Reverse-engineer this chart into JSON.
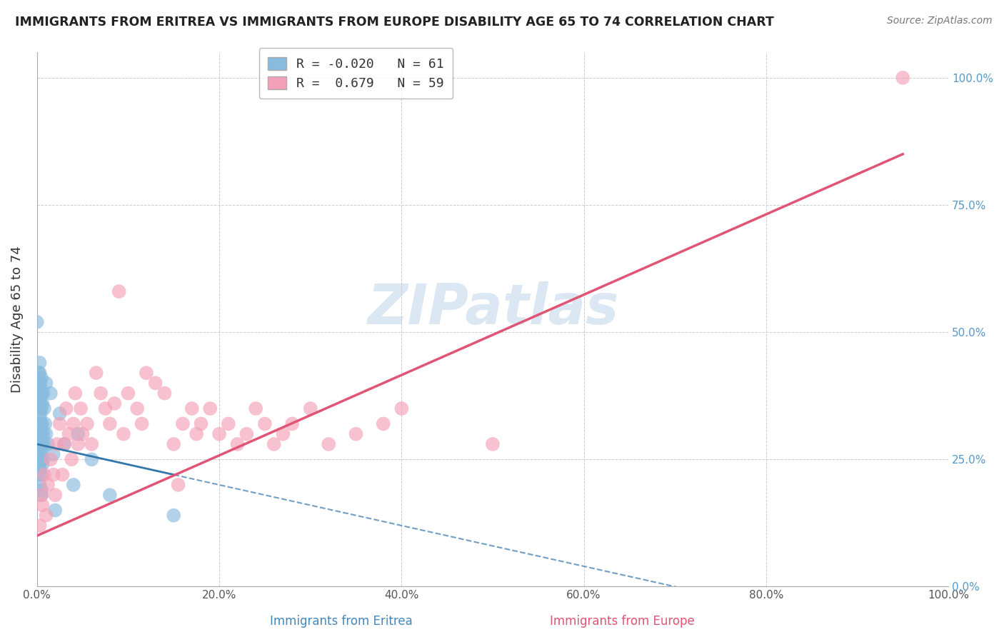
{
  "title": "IMMIGRANTS FROM ERITREA VS IMMIGRANTS FROM EUROPE DISABILITY AGE 65 TO 74 CORRELATION CHART",
  "source": "Source: ZipAtlas.com",
  "ylabel": "Disability Age 65 to 74",
  "xlabel_blue": "Immigrants from Eritrea",
  "xlabel_pink": "Immigrants from Europe",
  "legend_blue_R": "-0.020",
  "legend_blue_N": "61",
  "legend_pink_R": "0.679",
  "legend_pink_N": "59",
  "blue_color": "#88bbdd",
  "pink_color": "#f4a0b8",
  "blue_line_color": "#3377aa",
  "pink_line_color": "#e05575",
  "watermark": "ZIPatlas",
  "xlim": [
    0.0,
    1.0
  ],
  "ylim": [
    0.0,
    1.05
  ],
  "blue_scatter": [
    [
      0.0,
      0.52
    ],
    [
      0.002,
      0.42
    ],
    [
      0.002,
      0.4
    ],
    [
      0.002,
      0.38
    ],
    [
      0.002,
      0.37
    ],
    [
      0.003,
      0.44
    ],
    [
      0.003,
      0.42
    ],
    [
      0.003,
      0.39
    ],
    [
      0.003,
      0.37
    ],
    [
      0.003,
      0.36
    ],
    [
      0.003,
      0.35
    ],
    [
      0.003,
      0.33
    ],
    [
      0.003,
      0.32
    ],
    [
      0.003,
      0.3
    ],
    [
      0.003,
      0.28
    ],
    [
      0.003,
      0.27
    ],
    [
      0.003,
      0.25
    ],
    [
      0.003,
      0.24
    ],
    [
      0.003,
      0.23
    ],
    [
      0.003,
      0.22
    ],
    [
      0.003,
      0.2
    ],
    [
      0.004,
      0.4
    ],
    [
      0.004,
      0.38
    ],
    [
      0.004,
      0.36
    ],
    [
      0.004,
      0.34
    ],
    [
      0.004,
      0.32
    ],
    [
      0.004,
      0.3
    ],
    [
      0.004,
      0.28
    ],
    [
      0.004,
      0.26
    ],
    [
      0.005,
      0.41
    ],
    [
      0.005,
      0.38
    ],
    [
      0.005,
      0.35
    ],
    [
      0.005,
      0.3
    ],
    [
      0.005,
      0.27
    ],
    [
      0.005,
      0.25
    ],
    [
      0.005,
      0.22
    ],
    [
      0.005,
      0.19
    ],
    [
      0.005,
      0.18
    ],
    [
      0.006,
      0.36
    ],
    [
      0.006,
      0.32
    ],
    [
      0.006,
      0.28
    ],
    [
      0.006,
      0.24
    ],
    [
      0.007,
      0.38
    ],
    [
      0.007,
      0.3
    ],
    [
      0.007,
      0.25
    ],
    [
      0.008,
      0.35
    ],
    [
      0.008,
      0.28
    ],
    [
      0.009,
      0.32
    ],
    [
      0.01,
      0.4
    ],
    [
      0.01,
      0.3
    ],
    [
      0.012,
      0.28
    ],
    [
      0.015,
      0.38
    ],
    [
      0.018,
      0.26
    ],
    [
      0.02,
      0.15
    ],
    [
      0.025,
      0.34
    ],
    [
      0.03,
      0.28
    ],
    [
      0.04,
      0.2
    ],
    [
      0.045,
      0.3
    ],
    [
      0.06,
      0.25
    ],
    [
      0.08,
      0.18
    ],
    [
      0.15,
      0.14
    ]
  ],
  "pink_scatter": [
    [
      0.003,
      0.12
    ],
    [
      0.005,
      0.18
    ],
    [
      0.006,
      0.16
    ],
    [
      0.008,
      0.22
    ],
    [
      0.01,
      0.14
    ],
    [
      0.012,
      0.2
    ],
    [
      0.015,
      0.25
    ],
    [
      0.018,
      0.22
    ],
    [
      0.02,
      0.18
    ],
    [
      0.022,
      0.28
    ],
    [
      0.025,
      0.32
    ],
    [
      0.028,
      0.22
    ],
    [
      0.03,
      0.28
    ],
    [
      0.032,
      0.35
    ],
    [
      0.035,
      0.3
    ],
    [
      0.038,
      0.25
    ],
    [
      0.04,
      0.32
    ],
    [
      0.042,
      0.38
    ],
    [
      0.045,
      0.28
    ],
    [
      0.048,
      0.35
    ],
    [
      0.05,
      0.3
    ],
    [
      0.055,
      0.32
    ],
    [
      0.06,
      0.28
    ],
    [
      0.065,
      0.42
    ],
    [
      0.07,
      0.38
    ],
    [
      0.075,
      0.35
    ],
    [
      0.08,
      0.32
    ],
    [
      0.085,
      0.36
    ],
    [
      0.09,
      0.58
    ],
    [
      0.095,
      0.3
    ],
    [
      0.1,
      0.38
    ],
    [
      0.11,
      0.35
    ],
    [
      0.115,
      0.32
    ],
    [
      0.12,
      0.42
    ],
    [
      0.13,
      0.4
    ],
    [
      0.14,
      0.38
    ],
    [
      0.15,
      0.28
    ],
    [
      0.155,
      0.2
    ],
    [
      0.16,
      0.32
    ],
    [
      0.17,
      0.35
    ],
    [
      0.175,
      0.3
    ],
    [
      0.18,
      0.32
    ],
    [
      0.19,
      0.35
    ],
    [
      0.2,
      0.3
    ],
    [
      0.21,
      0.32
    ],
    [
      0.22,
      0.28
    ],
    [
      0.23,
      0.3
    ],
    [
      0.24,
      0.35
    ],
    [
      0.25,
      0.32
    ],
    [
      0.26,
      0.28
    ],
    [
      0.27,
      0.3
    ],
    [
      0.28,
      0.32
    ],
    [
      0.3,
      0.35
    ],
    [
      0.32,
      0.28
    ],
    [
      0.35,
      0.3
    ],
    [
      0.38,
      0.32
    ],
    [
      0.4,
      0.35
    ],
    [
      0.5,
      0.28
    ],
    [
      0.95,
      1.0
    ]
  ],
  "background_color": "#ffffff",
  "grid_color": "#cccccc",
  "blue_trend_x_end": 0.15,
  "blue_trend_y_start": 0.28,
  "blue_trend_y_end": 0.22,
  "pink_trend_x_start": 0.0,
  "pink_trend_x_end": 0.95,
  "pink_trend_y_start": 0.1,
  "pink_trend_y_end": 0.85
}
